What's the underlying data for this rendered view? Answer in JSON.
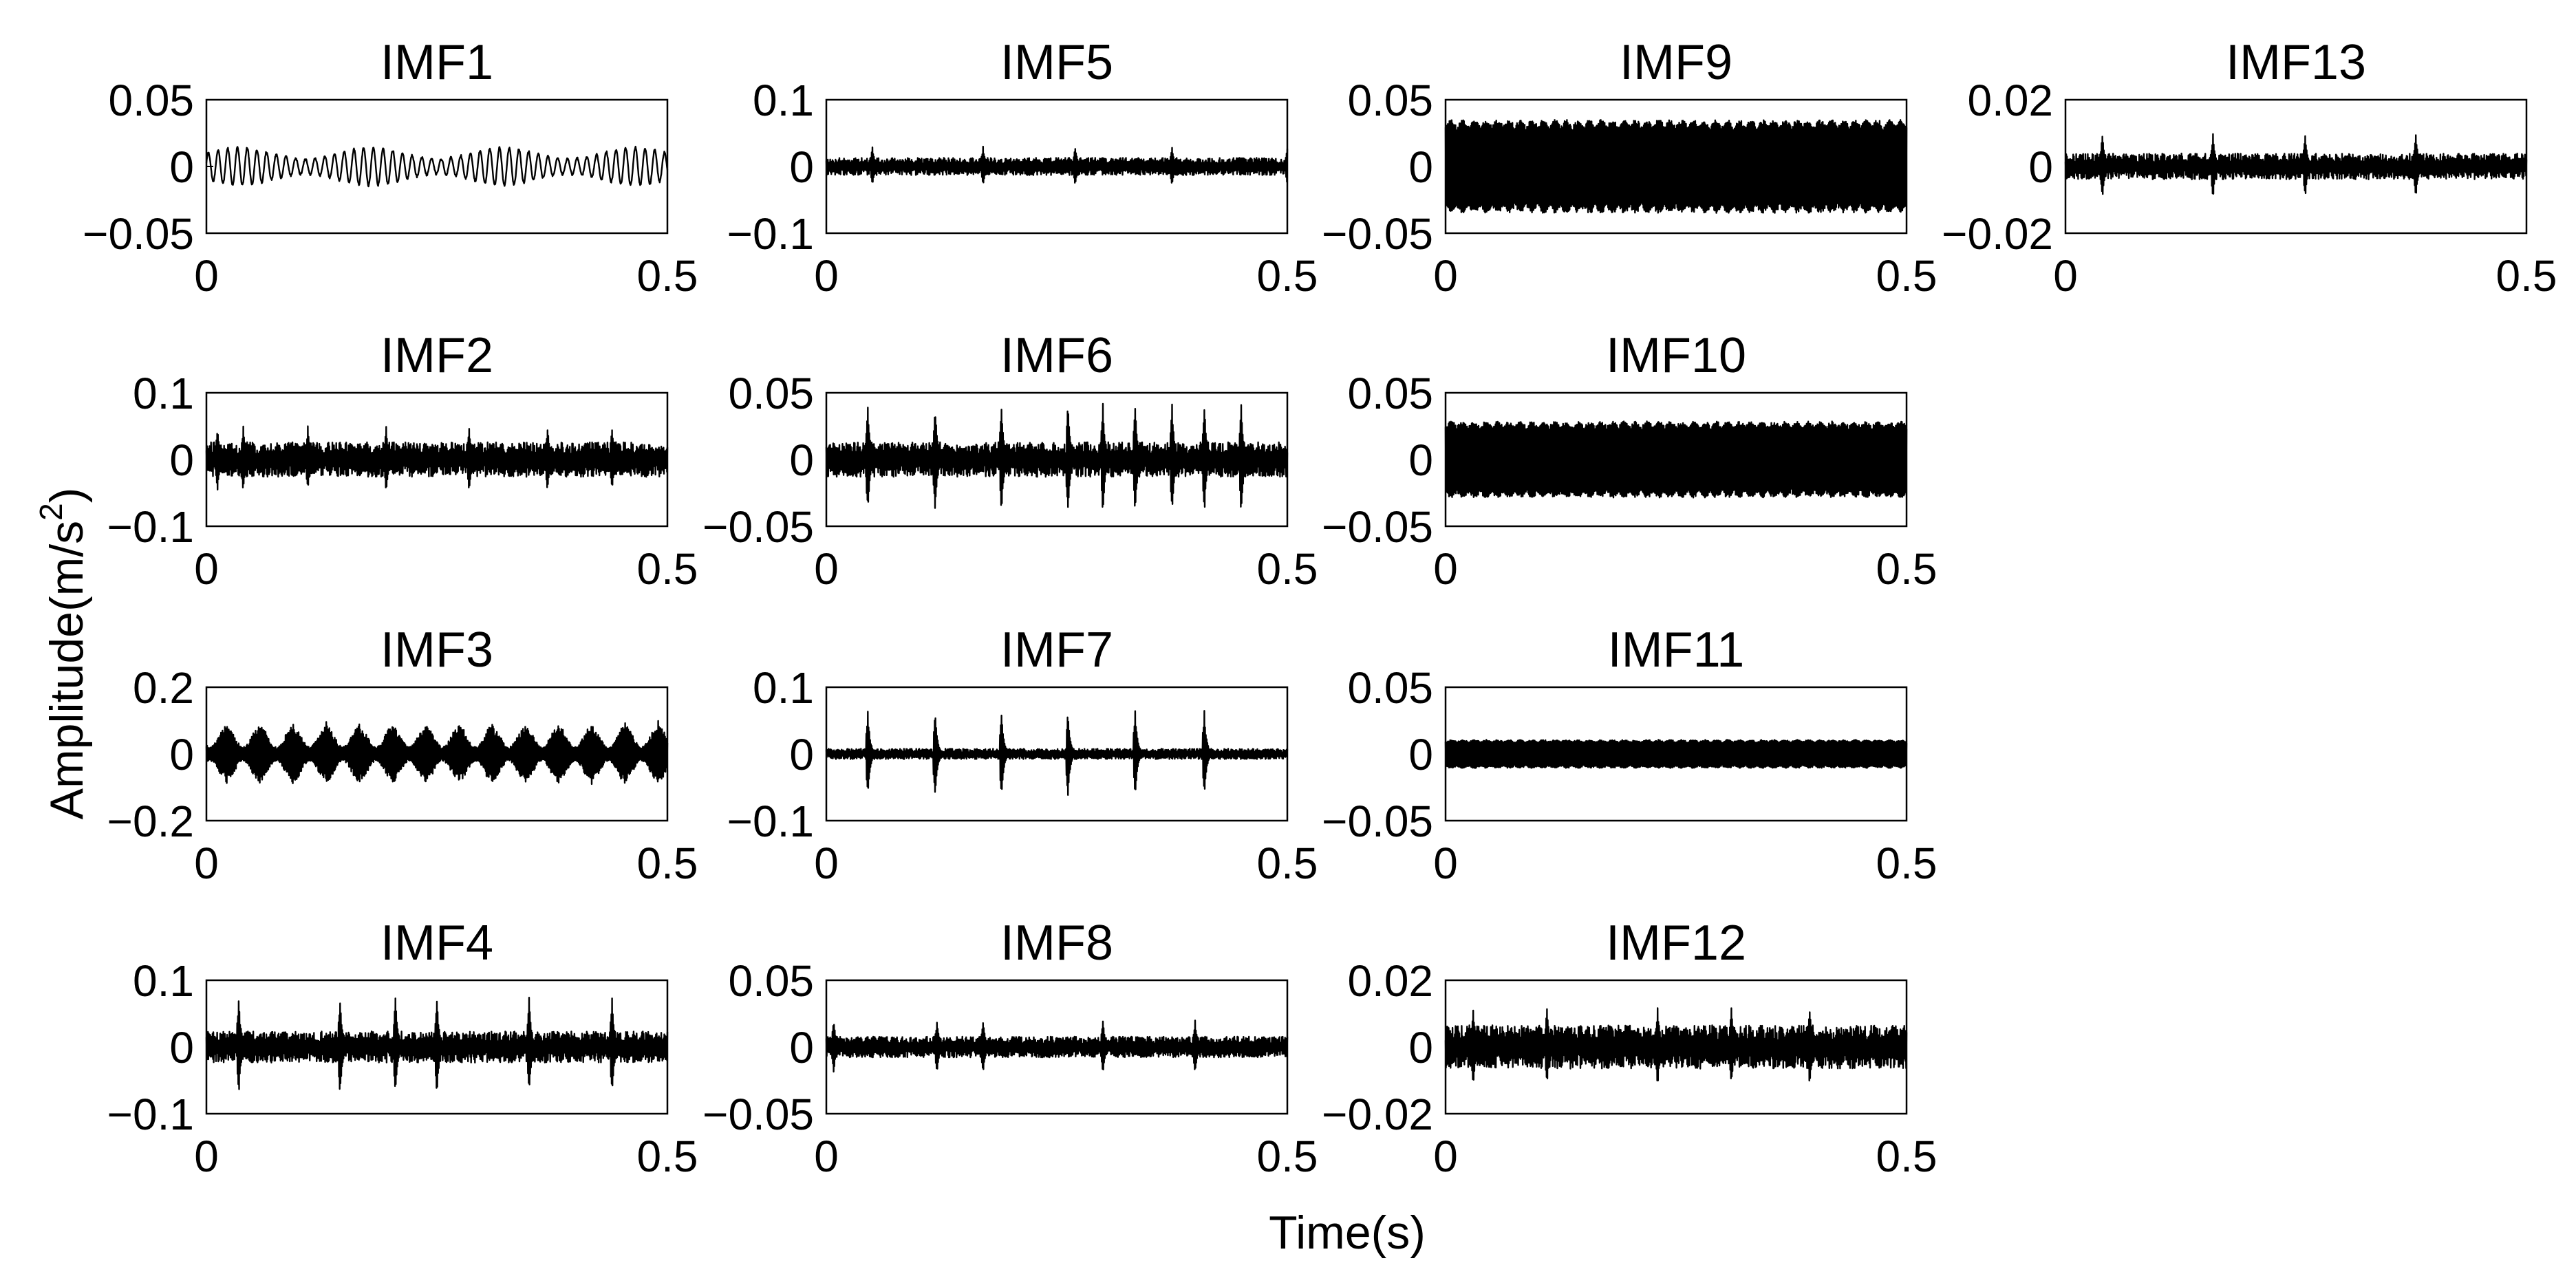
{
  "figure": {
    "xlabel": "Time(s)",
    "ylabel_main": "Amplitude(m/s",
    "ylabel_sup": "2",
    "ylabel_close": ")"
  },
  "chart_data": [
    {
      "type": "line",
      "title": "IMF1",
      "col": 0,
      "row": 0,
      "xlim": [
        0,
        0.5
      ],
      "xticks": [
        "0",
        "0.5"
      ],
      "ylim": [
        -0.05,
        0.05
      ],
      "yticks": [
        "0.05",
        "0",
        "−0.05"
      ],
      "signal": {
        "pattern": "tonal",
        "carrier_cycles": 95,
        "typical_amplitude": 0.012,
        "peak_amplitude": 0.02,
        "impulse_times": []
      },
      "style": {
        "line_color": "#000000"
      }
    },
    {
      "type": "line",
      "title": "IMF2",
      "col": 0,
      "row": 1,
      "xlim": [
        0,
        0.5
      ],
      "xticks": [
        "0",
        "0.5"
      ],
      "ylim": [
        -0.1,
        0.1
      ],
      "yticks": [
        "0.1",
        "0",
        "−0.1"
      ],
      "signal": {
        "pattern": "noise",
        "carrier_cycles": 320,
        "typical_amplitude": 0.02,
        "peak_amplitude": 0.05,
        "impulse_times": [
          0.012,
          0.04,
          0.11,
          0.195,
          0.285,
          0.37,
          0.44
        ]
      },
      "style": {
        "line_color": "#000000"
      }
    },
    {
      "type": "line",
      "title": "IMF3",
      "col": 0,
      "row": 2,
      "xlim": [
        0,
        0.5
      ],
      "xticks": [
        "0",
        "0.5"
      ],
      "ylim": [
        -0.2,
        0.2
      ],
      "yticks": [
        "0.2",
        "0",
        "−0.2"
      ],
      "signal": {
        "pattern": "beats",
        "carrier_cycles": 450,
        "typical_amplitude": 0.07,
        "peak_amplitude": 0.1,
        "impulse_times": [
          0.022,
          0.058,
          0.094,
          0.13,
          0.166,
          0.202,
          0.238,
          0.274,
          0.31,
          0.346,
          0.382,
          0.418,
          0.454,
          0.49
        ]
      },
      "style": {
        "line_color": "#000000"
      }
    },
    {
      "type": "line",
      "title": "IMF4",
      "col": 0,
      "row": 3,
      "xlim": [
        0,
        0.5
      ],
      "xticks": [
        "0",
        "0.5"
      ],
      "ylim": [
        -0.1,
        0.1
      ],
      "yticks": [
        "0.1",
        "0",
        "−0.1"
      ],
      "signal": {
        "pattern": "noise",
        "carrier_cycles": 420,
        "typical_amplitude": 0.018,
        "peak_amplitude": 0.075,
        "impulse_times": [
          0.035,
          0.145,
          0.205,
          0.25,
          0.35,
          0.44
        ]
      },
      "style": {
        "line_color": "#000000"
      }
    },
    {
      "type": "line",
      "title": "IMF5",
      "col": 1,
      "row": 0,
      "xlim": [
        0,
        0.5
      ],
      "xticks": [
        "0",
        "0.5"
      ],
      "ylim": [
        -0.1,
        0.1
      ],
      "yticks": [
        "0.1",
        "0",
        "−0.1"
      ],
      "signal": {
        "pattern": "noise",
        "carrier_cycles": 380,
        "typical_amplitude": 0.01,
        "peak_amplitude": 0.03,
        "impulse_times": [
          0.05,
          0.17,
          0.27,
          0.375,
          0.5
        ]
      },
      "style": {
        "line_color": "#000000"
      }
    },
    {
      "type": "line",
      "title": "IMF6",
      "col": 1,
      "row": 1,
      "xlim": [
        0,
        0.5
      ],
      "xticks": [
        "0",
        "0.5"
      ],
      "ylim": [
        -0.05,
        0.05
      ],
      "yticks": [
        "0.05",
        "0",
        "−0.05"
      ],
      "signal": {
        "pattern": "bursts",
        "carrier_cycles": 420,
        "typical_amplitude": 0.01,
        "peak_amplitude": 0.042,
        "impulse_times": [
          0.045,
          0.118,
          0.19,
          0.262,
          0.3,
          0.335,
          0.375,
          0.41,
          0.45
        ]
      },
      "style": {
        "line_color": "#000000"
      }
    },
    {
      "type": "line",
      "title": "IMF7",
      "col": 1,
      "row": 2,
      "xlim": [
        0,
        0.5
      ],
      "xticks": [
        "0",
        "0.5"
      ],
      "ylim": [
        -0.1,
        0.1
      ],
      "yticks": [
        "0.1",
        "0",
        "−0.1"
      ],
      "signal": {
        "pattern": "bursts",
        "carrier_cycles": 420,
        "typical_amplitude": 0.006,
        "peak_amplitude": 0.065,
        "impulse_times": [
          0.045,
          0.118,
          0.19,
          0.262,
          0.335,
          0.41
        ]
      },
      "style": {
        "line_color": "#000000"
      }
    },
    {
      "type": "line",
      "title": "IMF8",
      "col": 1,
      "row": 3,
      "xlim": [
        0,
        0.5
      ],
      "xticks": [
        "0",
        "0.5"
      ],
      "ylim": [
        -0.05,
        0.05
      ],
      "yticks": [
        "0.05",
        "0",
        "−0.05"
      ],
      "signal": {
        "pattern": "noise",
        "carrier_cycles": 380,
        "typical_amplitude": 0.006,
        "peak_amplitude": 0.02,
        "impulse_times": [
          0.008,
          0.12,
          0.17,
          0.3,
          0.4
        ]
      },
      "style": {
        "line_color": "#000000"
      }
    },
    {
      "type": "line",
      "title": "IMF9",
      "col": 2,
      "row": 0,
      "xlim": [
        0,
        0.5
      ],
      "xticks": [
        "0",
        "0.5"
      ],
      "ylim": [
        -0.05,
        0.05
      ],
      "yticks": [
        "0.05",
        "0",
        "−0.05"
      ],
      "signal": {
        "pattern": "dense",
        "carrier_cycles": 600,
        "typical_amplitude": 0.033,
        "peak_amplitude": 0.038,
        "impulse_times": []
      },
      "style": {
        "line_color": "#000000"
      }
    },
    {
      "type": "line",
      "title": "IMF10",
      "col": 2,
      "row": 1,
      "xlim": [
        0,
        0.5
      ],
      "xticks": [
        "0",
        "0.5"
      ],
      "ylim": [
        -0.05,
        0.05
      ],
      "yticks": [
        "0.05",
        "0",
        "−0.05"
      ],
      "signal": {
        "pattern": "dense",
        "carrier_cycles": 600,
        "typical_amplitude": 0.027,
        "peak_amplitude": 0.034,
        "impulse_times": []
      },
      "style": {
        "line_color": "#000000"
      }
    },
    {
      "type": "line",
      "title": "IMF11",
      "col": 2,
      "row": 2,
      "xlim": [
        0,
        0.5
      ],
      "xticks": [
        "0",
        "0.5"
      ],
      "ylim": [
        -0.05,
        0.05
      ],
      "yticks": [
        "0.05",
        "0",
        "−0.05"
      ],
      "signal": {
        "pattern": "dense",
        "carrier_cycles": 600,
        "typical_amplitude": 0.01,
        "peak_amplitude": 0.016,
        "impulse_times": []
      },
      "style": {
        "line_color": "#000000"
      }
    },
    {
      "type": "line",
      "title": "IMF12",
      "col": 2,
      "row": 3,
      "xlim": [
        0,
        0.5
      ],
      "xticks": [
        "0",
        "0.5"
      ],
      "ylim": [
        -0.02,
        0.02
      ],
      "yticks": [
        "0.02",
        "0",
        "−0.02"
      ],
      "signal": {
        "pattern": "noise",
        "carrier_cycles": 380,
        "typical_amplitude": 0.005,
        "peak_amplitude": 0.012,
        "impulse_times": [
          0.03,
          0.11,
          0.23,
          0.31,
          0.395
        ]
      },
      "style": {
        "line_color": "#000000"
      }
    },
    {
      "type": "line",
      "title": "IMF13",
      "col": 3,
      "row": 0,
      "xlim": [
        0,
        0.5
      ],
      "xticks": [
        "0",
        "0.5"
      ],
      "ylim": [
        -0.02,
        0.02
      ],
      "yticks": [
        "0.02",
        "0",
        "−0.02"
      ],
      "signal": {
        "pattern": "noise",
        "carrier_cycles": 380,
        "typical_amplitude": 0.003,
        "peak_amplitude": 0.01,
        "impulse_times": [
          0.04,
          0.16,
          0.26,
          0.38
        ]
      },
      "style": {
        "line_color": "#000000"
      }
    }
  ]
}
